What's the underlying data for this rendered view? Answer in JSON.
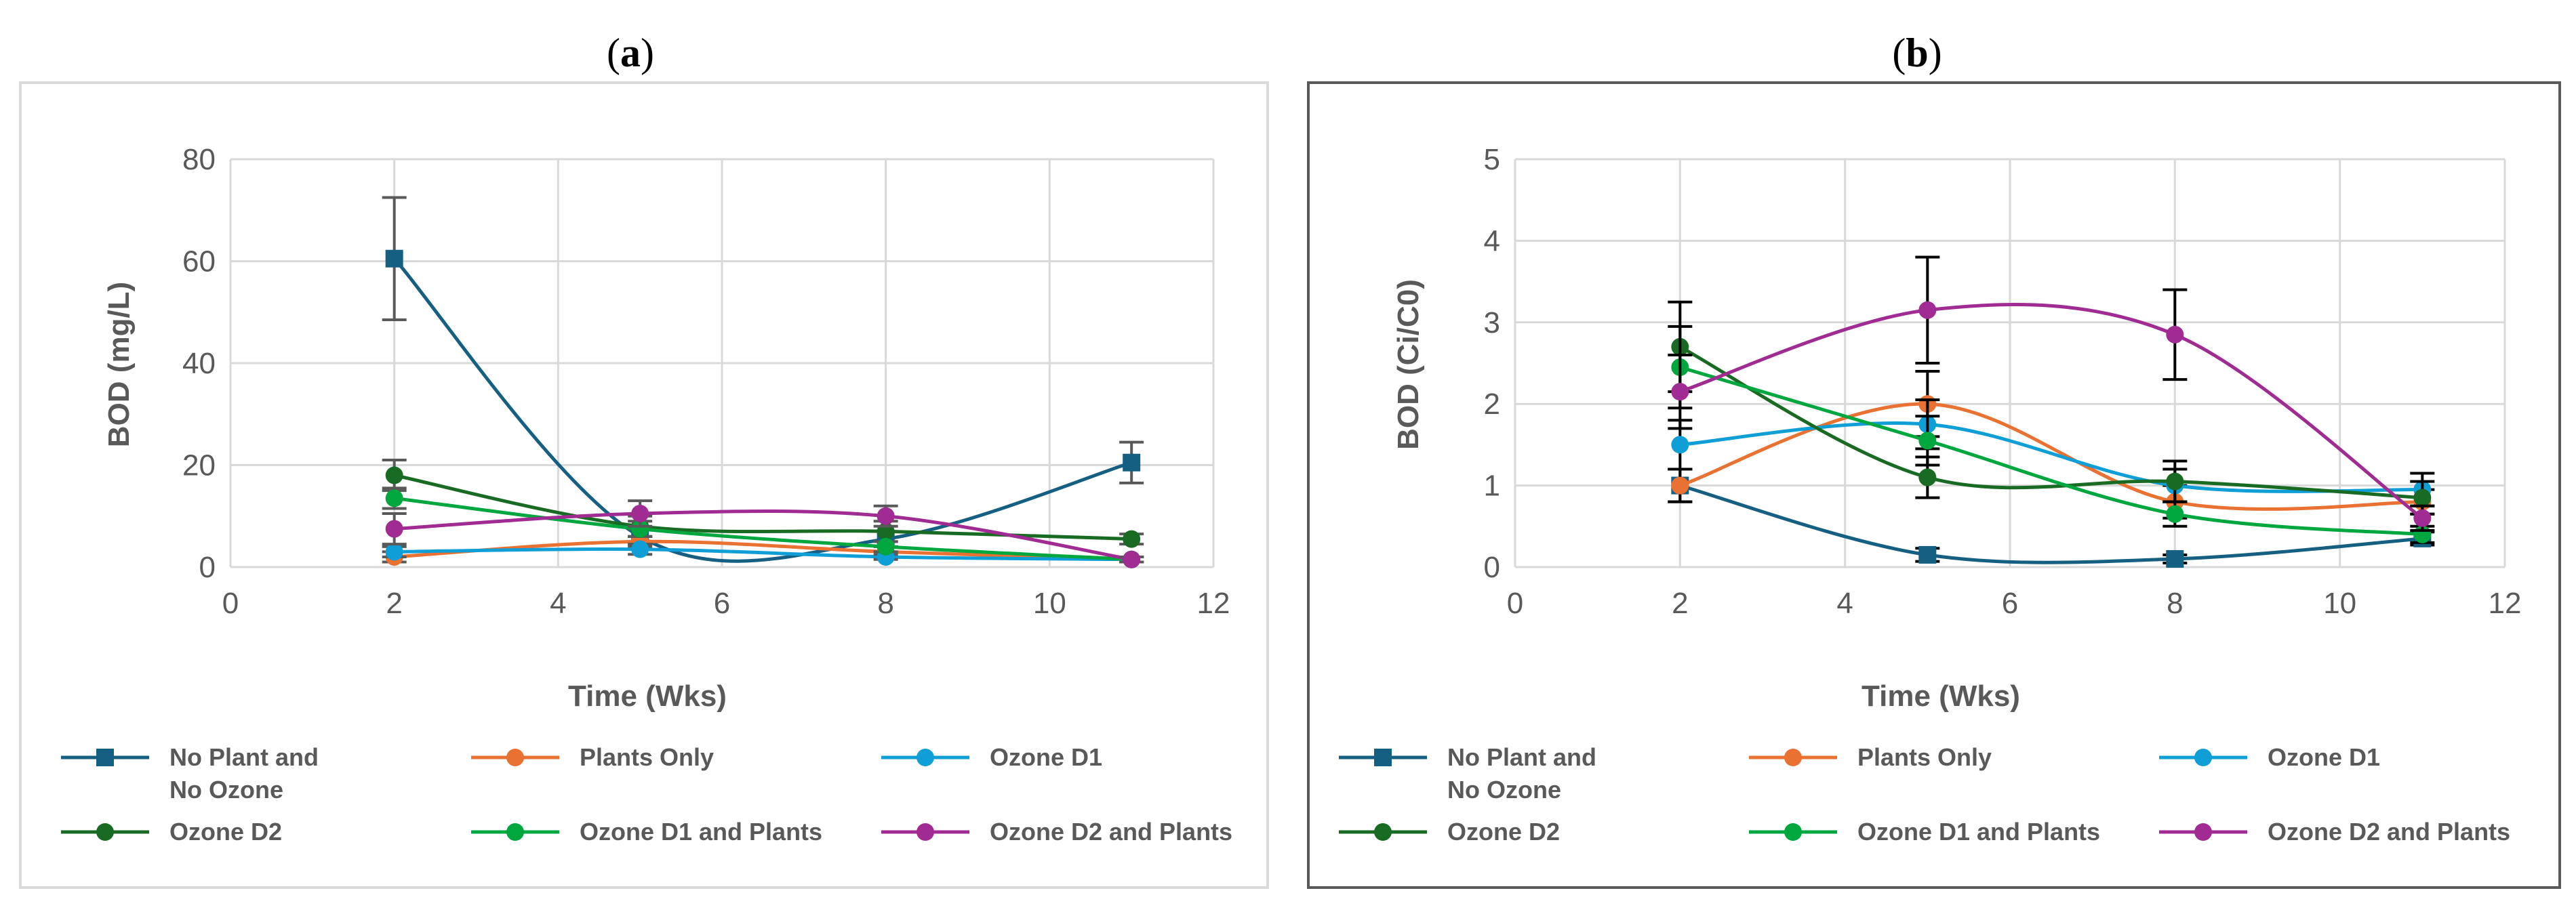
{
  "chart_data": [
    {
      "panel": "a",
      "type": "line",
      "xlabel": "Time (Wks)",
      "ylabel": "BOD  (mg/L)",
      "xlim": [
        0,
        12
      ],
      "ylim": [
        0,
        80
      ],
      "xticks": [
        0,
        2,
        4,
        6,
        8,
        10,
        12
      ],
      "yticks": [
        0,
        20,
        40,
        60,
        80
      ],
      "grid": true,
      "legend_position": "bottom",
      "errorbar_color": "#595959",
      "series": [
        {
          "name": "No Plant and No Ozone",
          "color": "#156082",
          "marker": "square",
          "x": [
            2,
            5,
            8,
            11
          ],
          "y": [
            60.5,
            6,
            5.5,
            20.5
          ],
          "err": [
            12,
            1.5,
            1.5,
            4
          ]
        },
        {
          "name": "Plants Only",
          "color": "#E97132",
          "marker": "circle",
          "x": [
            2,
            5,
            8,
            11
          ],
          "y": [
            2,
            5,
            3,
            1.5
          ],
          "err": [
            1,
            1,
            1,
            0.5
          ]
        },
        {
          "name": "Ozone D1",
          "color": "#0F9ED5",
          "marker": "circle",
          "x": [
            2,
            5,
            8,
            11
          ],
          "y": [
            3,
            3.5,
            2,
            1.5
          ],
          "err": [
            1,
            1,
            0.5,
            0.5
          ]
        },
        {
          "name": "Ozone D2",
          "color": "#196B24",
          "marker": "circle",
          "x": [
            2,
            5,
            8,
            11
          ],
          "y": [
            18,
            8,
            7,
            5.5
          ],
          "err": [
            3,
            2,
            2,
            1
          ]
        },
        {
          "name": "Ozone D1 and Plants",
          "color": "#00A63E",
          "marker": "circle",
          "x": [
            2,
            5,
            8,
            11
          ],
          "y": [
            13.5,
            7.5,
            4,
            1.5
          ],
          "err": [
            2,
            1.5,
            1,
            0.5
          ]
        },
        {
          "name": "Ozone D2 and Plants",
          "color": "#A02B93",
          "marker": "circle",
          "x": [
            2,
            5,
            8,
            11
          ],
          "y": [
            7.5,
            10.5,
            10,
            1.5
          ],
          "err": [
            3,
            2.5,
            2,
            0.5
          ]
        }
      ]
    },
    {
      "panel": "b",
      "type": "line",
      "xlabel": "Time (Wks)",
      "ylabel": "BOD (Ci/C0)",
      "xlim": [
        0,
        12
      ],
      "ylim": [
        0,
        5
      ],
      "xticks": [
        0,
        2,
        4,
        6,
        8,
        10,
        12
      ],
      "yticks": [
        0,
        1,
        2,
        3,
        4,
        5
      ],
      "grid": true,
      "legend_position": "bottom",
      "errorbar_color": "#000000",
      "series": [
        {
          "name": "No Plant and No Ozone",
          "color": "#156082",
          "marker": "square",
          "x": [
            2,
            5,
            8,
            11
          ],
          "y": [
            1.0,
            0.15,
            0.1,
            0.35
          ],
          "err": [
            0.2,
            0.08,
            0.05,
            0.08
          ]
        },
        {
          "name": "Plants Only",
          "color": "#E97132",
          "marker": "circle",
          "x": [
            2,
            5,
            8,
            11
          ],
          "y": [
            1.0,
            2.0,
            0.8,
            0.8
          ],
          "err": [
            0.2,
            0.4,
            0.2,
            0.15
          ]
        },
        {
          "name": "Ozone D1",
          "color": "#0F9ED5",
          "marker": "circle",
          "x": [
            2,
            5,
            8,
            11
          ],
          "y": [
            1.5,
            1.75,
            1.0,
            0.95
          ],
          "err": [
            0.3,
            0.3,
            0.2,
            0.2
          ]
        },
        {
          "name": "Ozone D2",
          "color": "#196B24",
          "marker": "circle",
          "x": [
            2,
            5,
            8,
            11
          ],
          "y": [
            2.7,
            1.1,
            1.05,
            0.85
          ],
          "err": [
            0.55,
            0.25,
            0.25,
            0.2
          ]
        },
        {
          "name": "Ozone D1 and Plants",
          "color": "#00A63E",
          "marker": "circle",
          "x": [
            2,
            5,
            8,
            11
          ],
          "y": [
            2.45,
            1.55,
            0.65,
            0.4
          ],
          "err": [
            0.5,
            0.3,
            0.15,
            0.1
          ]
        },
        {
          "name": "Ozone D2 and Plants",
          "color": "#A02B93",
          "marker": "circle",
          "x": [
            2,
            5,
            8,
            11
          ],
          "y": [
            2.15,
            3.15,
            2.85,
            0.6
          ],
          "err": [
            0.45,
            0.65,
            0.55,
            0.15
          ]
        }
      ]
    }
  ],
  "panels": {
    "a": {
      "label_open": "(",
      "label_letter": "a",
      "label_close": ")"
    },
    "b": {
      "label_open": "(",
      "label_letter": "b",
      "label_close": ")"
    }
  },
  "legend": {
    "items": [
      {
        "line1": "No Plant and",
        "line2": "No Ozone",
        "color": "#156082",
        "marker": "square"
      },
      {
        "line1": "Plants Only",
        "line2": "",
        "color": "#E97132",
        "marker": "circle"
      },
      {
        "line1": "Ozone D1",
        "line2": "",
        "color": "#0F9ED5",
        "marker": "circle"
      },
      {
        "line1": "Ozone D2",
        "line2": "",
        "color": "#196B24",
        "marker": "circle"
      },
      {
        "line1": "Ozone D1 and Plants",
        "line2": "",
        "color": "#00A63E",
        "marker": "circle"
      },
      {
        "line1": "Ozone D2 and Plants",
        "line2": "",
        "color": "#A02B93",
        "marker": "circle"
      }
    ]
  },
  "colors": {
    "grid": "#D9D9D9",
    "frame_a": "#D9D9D9",
    "frame_b": "#595959",
    "text": "#595959"
  }
}
